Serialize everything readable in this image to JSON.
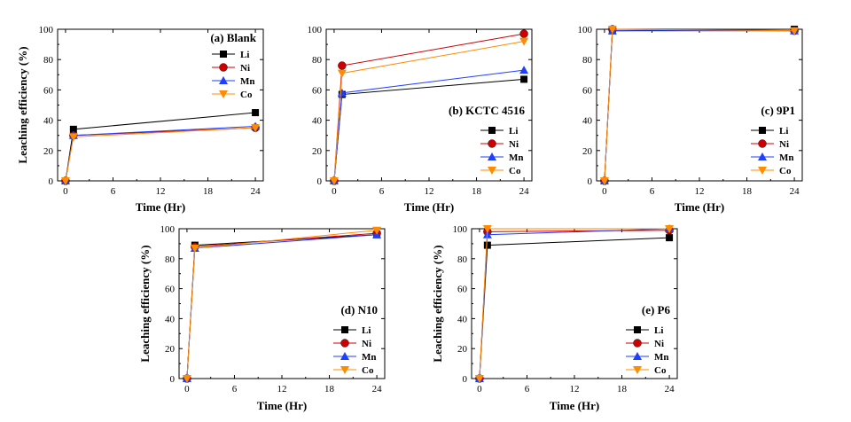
{
  "series_meta": [
    {
      "name": "Li",
      "color": "#000000",
      "marker": "square"
    },
    {
      "name": "Ni",
      "color": "#cc0000",
      "marker": "circle"
    },
    {
      "name": "Mn",
      "color": "#1f3fff",
      "marker": "triangle-up"
    },
    {
      "name": "Co",
      "color": "#ff8c00",
      "marker": "triangle-down"
    }
  ],
  "chart_data": [
    {
      "type": "line",
      "title": "(a) Blank",
      "legend_position": "top-right",
      "xlabel": "Time (Hr)",
      "ylabel": "Leaching efficiency (%)",
      "xlim": [
        -1,
        25
      ],
      "ylim": [
        0,
        100
      ],
      "xticks": [
        0,
        6,
        12,
        18,
        24
      ],
      "yticks": [
        0,
        20,
        40,
        60,
        80,
        100
      ],
      "x": [
        0,
        1,
        24
      ],
      "series": [
        {
          "name": "Li",
          "values": [
            0,
            34,
            45
          ]
        },
        {
          "name": "Ni",
          "values": [
            0,
            30,
            35
          ]
        },
        {
          "name": "Mn",
          "values": [
            0,
            30,
            36
          ]
        },
        {
          "name": "Co",
          "values": [
            0,
            29,
            35
          ]
        }
      ]
    },
    {
      "type": "line",
      "title": "(b) KCTC 4516",
      "legend_position": "bottom-right",
      "xlabel": "Time (Hr)",
      "ylabel": "",
      "xlim": [
        -1,
        25
      ],
      "ylim": [
        0,
        100
      ],
      "xticks": [
        0,
        6,
        12,
        18,
        24
      ],
      "yticks": [
        0,
        20,
        40,
        60,
        80,
        100
      ],
      "x": [
        0,
        1,
        24
      ],
      "series": [
        {
          "name": "Li",
          "values": [
            0,
            57,
            67
          ]
        },
        {
          "name": "Ni",
          "values": [
            0,
            76,
            97
          ]
        },
        {
          "name": "Mn",
          "values": [
            0,
            58,
            73
          ]
        },
        {
          "name": "Co",
          "values": [
            0,
            71,
            92
          ]
        }
      ]
    },
    {
      "type": "line",
      "title": "(c) 9P1",
      "legend_position": "bottom-right",
      "xlabel": "Time (Hr)",
      "ylabel": "",
      "xlim": [
        -1,
        25
      ],
      "ylim": [
        0,
        100
      ],
      "xticks": [
        0,
        6,
        12,
        18,
        24
      ],
      "yticks": [
        0,
        20,
        40,
        60,
        80,
        100
      ],
      "x": [
        0,
        1,
        24
      ],
      "series": [
        {
          "name": "Li",
          "values": [
            0,
            99,
            100
          ]
        },
        {
          "name": "Ni",
          "values": [
            0,
            100,
            99
          ]
        },
        {
          "name": "Mn",
          "values": [
            0,
            99,
            99
          ]
        },
        {
          "name": "Co",
          "values": [
            0,
            100,
            99
          ]
        }
      ]
    },
    {
      "type": "line",
      "title": "(d) N10",
      "legend_position": "bottom-right",
      "xlabel": "Time (Hr)",
      "ylabel": "Leaching efficiency (%)",
      "xlim": [
        -1,
        25
      ],
      "ylim": [
        0,
        100
      ],
      "xticks": [
        0,
        6,
        12,
        18,
        24
      ],
      "yticks": [
        0,
        20,
        40,
        60,
        80,
        100
      ],
      "x": [
        0,
        1,
        24
      ],
      "series": [
        {
          "name": "Li",
          "values": [
            0,
            89,
            96
          ]
        },
        {
          "name": "Ni",
          "values": [
            0,
            88,
            97
          ]
        },
        {
          "name": "Mn",
          "values": [
            0,
            87,
            96
          ]
        },
        {
          "name": "Co",
          "values": [
            0,
            87,
            99
          ]
        }
      ]
    },
    {
      "type": "line",
      "title": "(e) P6",
      "legend_position": "bottom-right",
      "xlabel": "Time (Hr)",
      "ylabel": "Leaching efficiency (%)",
      "xlim": [
        -1,
        25
      ],
      "ylim": [
        0,
        100
      ],
      "xticks": [
        0,
        6,
        12,
        18,
        24
      ],
      "yticks": [
        0,
        20,
        40,
        60,
        80,
        100
      ],
      "x": [
        0,
        1,
        24
      ],
      "series": [
        {
          "name": "Li",
          "values": [
            0,
            89,
            94
          ]
        },
        {
          "name": "Ni",
          "values": [
            0,
            98,
            99
          ]
        },
        {
          "name": "Mn",
          "values": [
            0,
            96,
            100
          ]
        },
        {
          "name": "Co",
          "values": [
            0,
            100,
            100
          ]
        }
      ]
    }
  ]
}
